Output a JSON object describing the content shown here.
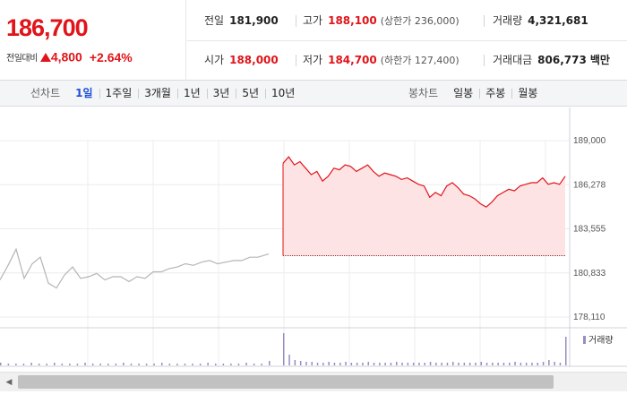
{
  "summary": {
    "price": "186,700",
    "change_label": "전일대비",
    "change_value": "4,800",
    "change_pct": "+2.64%",
    "prev_close": {
      "label": "전일",
      "value": "181,900"
    },
    "high": {
      "label": "고가",
      "value": "188,100",
      "limit": "(상한가 236,000)"
    },
    "volume": {
      "label": "거래량",
      "value": "4,321,681"
    },
    "open": {
      "label": "시가",
      "value": "188,000"
    },
    "low": {
      "label": "저가",
      "value": "184,700",
      "limit": "(하한가 127,400)"
    },
    "amount": {
      "label": "거래대금",
      "value": "806,773",
      "unit": "백만"
    }
  },
  "line_tabs": {
    "label": "선차트",
    "items": [
      "1일",
      "1주일",
      "3개월",
      "1년",
      "3년",
      "5년",
      "10년"
    ],
    "active": "1일"
  },
  "candle_tabs": {
    "label": "봉차트",
    "items": [
      "일봉",
      "주봉",
      "월봉"
    ]
  },
  "chart_data": {
    "type": "line",
    "y_ticks": [
      "189,000",
      "186,278",
      "183,555",
      "180,833",
      "178,110"
    ],
    "ylim": [
      178110,
      189000
    ],
    "prev_close_line": 181900,
    "volume_legend": "거래량",
    "colors": {
      "up": "#e0141a",
      "fill": "#fde3e4",
      "prior": "#b5b5b5",
      "volume": "#9a8bc4"
    },
    "series": [
      {
        "x": [
          0,
          0.03,
          0.06,
          0.09,
          0.12,
          0.15,
          0.18,
          0.21,
          0.24,
          0.27,
          0.3,
          0.33,
          0.36,
          0.39,
          0.42,
          0.45,
          0.48,
          0.51,
          0.54,
          0.57,
          0.6,
          0.63,
          0.66,
          0.69,
          0.72,
          0.75,
          0.78,
          0.81,
          0.84,
          0.87,
          0.9,
          0.93,
          0.96,
          1.0
        ],
        "y": [
          180400,
          181300,
          182300,
          180500,
          181400,
          181800,
          180200,
          179900,
          180700,
          181200,
          180500,
          180600,
          180800,
          180400,
          180600,
          180600,
          180300,
          180600,
          180500,
          180900,
          180900,
          181100,
          181200,
          181400,
          181300,
          181500,
          181600,
          181400,
          181500,
          181600,
          181600,
          181800,
          181800,
          182000
        ]
      },
      {
        "x": [
          0,
          0.02,
          0.04,
          0.06,
          0.08,
          0.1,
          0.12,
          0.14,
          0.16,
          0.18,
          0.2,
          0.22,
          0.24,
          0.26,
          0.28,
          0.3,
          0.32,
          0.34,
          0.36,
          0.38,
          0.4,
          0.42,
          0.44,
          0.46,
          0.48,
          0.5,
          0.52,
          0.54,
          0.56,
          0.58,
          0.6,
          0.62,
          0.64,
          0.66,
          0.68,
          0.7,
          0.72,
          0.74,
          0.76,
          0.78,
          0.8,
          0.82,
          0.84,
          0.86,
          0.88,
          0.9,
          0.92,
          0.94,
          0.96,
          0.98,
          1.0
        ],
        "y": [
          187600,
          188000,
          187500,
          187700,
          187300,
          186900,
          187100,
          186500,
          186800,
          187300,
          187200,
          187500,
          187400,
          187100,
          187300,
          187500,
          187100,
          186800,
          187000,
          186900,
          186800,
          186600,
          186700,
          186500,
          186300,
          186200,
          185500,
          185800,
          185600,
          186200,
          186400,
          186100,
          185700,
          185600,
          185400,
          185100,
          184900,
          185200,
          185600,
          185800,
          186000,
          185900,
          186200,
          186300,
          186400,
          186400,
          186700,
          186300,
          186400,
          186300,
          186800
        ]
      }
    ],
    "volume": {
      "prior_session": [
        3,
        2,
        2,
        2,
        3,
        2,
        2,
        3,
        2,
        2,
        2,
        3,
        2,
        2,
        2,
        2,
        3,
        2,
        2,
        2,
        2,
        3,
        2,
        2,
        2,
        2,
        2,
        3,
        2,
        2,
        2,
        2,
        3,
        2,
        2,
        5
      ],
      "current_session": [
        36,
        12,
        6,
        5,
        4,
        4,
        3,
        3,
        4,
        3,
        3,
        4,
        3,
        3,
        3,
        4,
        3,
        3,
        3,
        3,
        4,
        3,
        3,
        3,
        3,
        3,
        4,
        3,
        3,
        3,
        4,
        3,
        3,
        3,
        3,
        4,
        3,
        3,
        3,
        3,
        3,
        4,
        3,
        3,
        3,
        3,
        4,
        6,
        4,
        3,
        32
      ]
    }
  }
}
